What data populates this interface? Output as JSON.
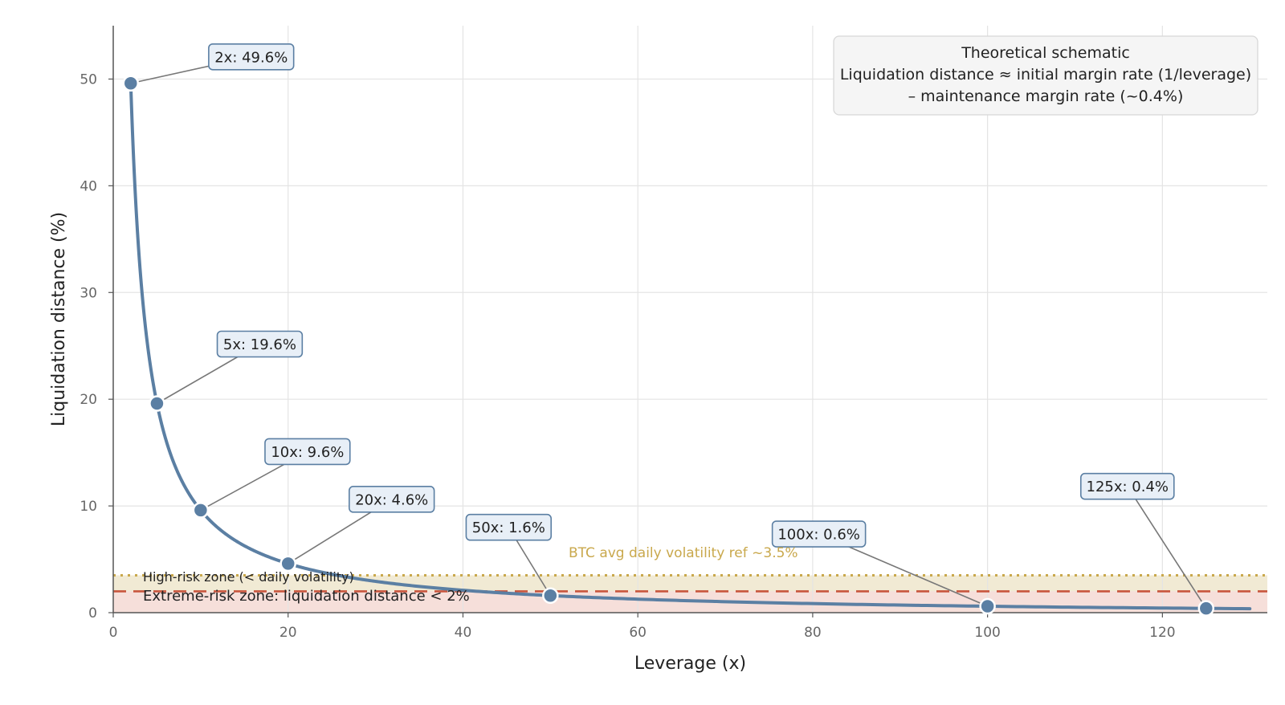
{
  "chart_data": {
    "type": "line",
    "x_axis": {
      "label": "Leverage (x)",
      "range": [
        0,
        132
      ],
      "ticks": [
        0,
        20,
        40,
        60,
        80,
        100,
        120
      ]
    },
    "y_axis": {
      "label": "Liquidation distance (%)",
      "range": [
        0,
        55
      ],
      "ticks": [
        0,
        10,
        20,
        30,
        40,
        50
      ]
    },
    "grid": true,
    "curve": {
      "formula": "100/leverage - 0.4",
      "x_range": [
        2,
        130
      ],
      "color": "#5b7fa3"
    },
    "points": [
      {
        "x": 2,
        "y": 49.6,
        "label": "2x: 49.6%"
      },
      {
        "x": 5,
        "y": 19.6,
        "label": "5x: 19.6%"
      },
      {
        "x": 10,
        "y": 9.6,
        "label": "10x: 9.6%"
      },
      {
        "x": 20,
        "y": 4.6,
        "label": "20x: 4.6%"
      },
      {
        "x": 50,
        "y": 1.6,
        "label": "50x: 1.6%"
      },
      {
        "x": 100,
        "y": 0.6,
        "label": "100x: 0.6%"
      },
      {
        "x": 125,
        "y": 0.4,
        "label": "125x: 0.4%"
      }
    ],
    "reference_lines": [
      {
        "y": 3.5,
        "label": "BTC avg daily volatility ref ~3.5%",
        "style": "dotted",
        "color": "#c9a84c"
      },
      {
        "y": 2,
        "label": "",
        "style": "dashed",
        "color": "#c8553d"
      }
    ],
    "zones": [
      {
        "from": 2,
        "to": 3.5,
        "label": "High-risk zone (< daily volatility)",
        "color": "#efe6cc"
      },
      {
        "from": 0,
        "to": 2,
        "label": "Extreme-risk zone: liquidation distance < 2%",
        "color": "#f5d9d4"
      }
    ],
    "note": {
      "lines": [
        "Theoretical schematic",
        "Liquidation distance ≈ initial margin rate (1/leverage)",
        "– maintenance margin rate (~0.4%)"
      ],
      "placement": "top-right"
    }
  }
}
